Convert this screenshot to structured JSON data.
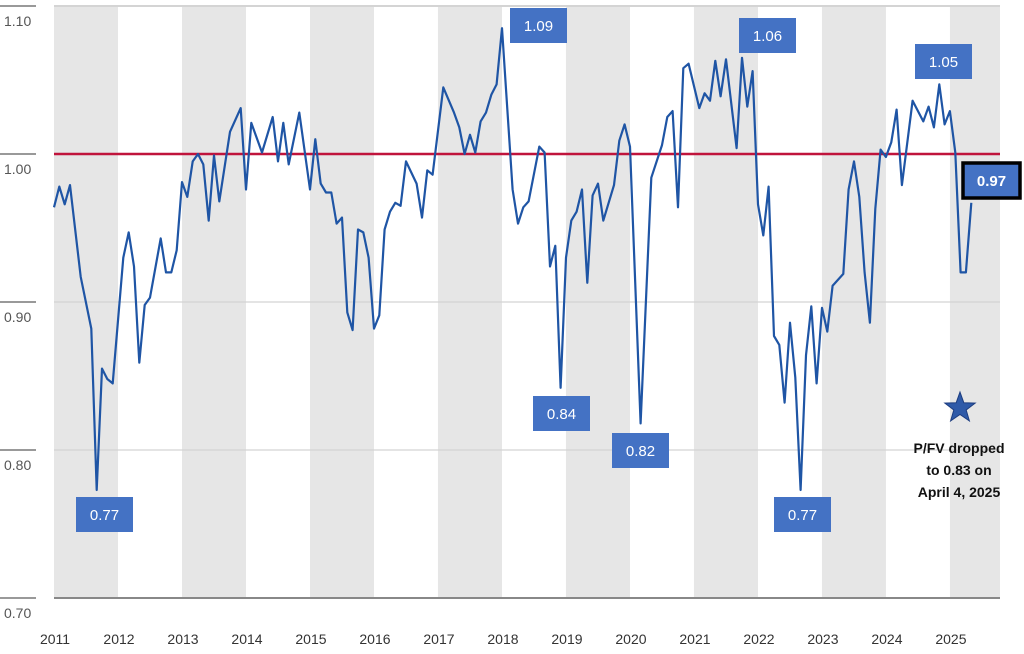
{
  "chart_data": {
    "type": "line",
    "title": "",
    "xlabel": "",
    "ylabel": "",
    "xlim": [
      "2011-01",
      "2025-10"
    ],
    "ylim": [
      0.7,
      1.1
    ],
    "yticks": [
      "0.70",
      "0.80",
      "0.90",
      "1.00",
      "1.10"
    ],
    "xticks": [
      "2011",
      "2012",
      "2013",
      "2014",
      "2015",
      "2016",
      "2017",
      "2018",
      "2019",
      "2020",
      "2021",
      "2022",
      "2023",
      "2024",
      "2025"
    ],
    "shaded_years": [
      "2011",
      "2013",
      "2015",
      "2017",
      "2019",
      "2021",
      "2023",
      "2025"
    ],
    "reference_line": {
      "value": 1.0,
      "color": "#c0143c"
    },
    "line_color": "#1f55a5",
    "label_color": "#4472c4",
    "grid": true,
    "series": [
      {
        "x": [
          "2011-01",
          "2011-02",
          "2011-03",
          "2011-04",
          "2011-06",
          "2011-08",
          "2011-09",
          "2011-10",
          "2011-11",
          "2011-12",
          "2012-02",
          "2012-03",
          "2012-04",
          "2012-05",
          "2012-06",
          "2012-07",
          "2012-09",
          "2012-10",
          "2012-11",
          "2012-12",
          "2013-01",
          "2013-02",
          "2013-03",
          "2013-04",
          "2013-05",
          "2013-06",
          "2013-07",
          "2013-08",
          "2013-10",
          "2013-12",
          "2014-01",
          "2014-02",
          "2014-04",
          "2014-06",
          "2014-07",
          "2014-08",
          "2014-09",
          "2014-11",
          "2015-01",
          "2015-02",
          "2015-03",
          "2015-04",
          "2015-05",
          "2015-06",
          "2015-07",
          "2015-08",
          "2015-09",
          "2015-10",
          "2015-11",
          "2015-12",
          "2016-01",
          "2016-02",
          "2016-03",
          "2016-04",
          "2016-05",
          "2016-06",
          "2016-07",
          "2016-09",
          "2016-10",
          "2016-11",
          "2016-12",
          "2017-02",
          "2017-04",
          "2017-05",
          "2017-06",
          "2017-07",
          "2017-08",
          "2017-09",
          "2017-10",
          "2017-11",
          "2017-12",
          "2018-01",
          "2018-03",
          "2018-04",
          "2018-05",
          "2018-06",
          "2018-08",
          "2018-09",
          "2018-10",
          "2018-11",
          "2018-12",
          "2019-01",
          "2019-02",
          "2019-03",
          "2019-04",
          "2019-05",
          "2019-06",
          "2019-07",
          "2019-08",
          "2019-10",
          "2019-11",
          "2019-12",
          "2020-01",
          "2020-03",
          "2020-05",
          "2020-07",
          "2020-08",
          "2020-09",
          "2020-10",
          "2020-11",
          "2020-12",
          "2021-02",
          "2021-03",
          "2021-04",
          "2021-05",
          "2021-06",
          "2021-07",
          "2021-09",
          "2021-10",
          "2021-11",
          "2021-12",
          "2022-01",
          "2022-02",
          "2022-03",
          "2022-04",
          "2022-05",
          "2022-06",
          "2022-07",
          "2022-08",
          "2022-09",
          "2022-10",
          "2022-11",
          "2022-12",
          "2023-01",
          "2023-02",
          "2023-03",
          "2023-05",
          "2023-06",
          "2023-07",
          "2023-08",
          "2023-09",
          "2023-10",
          "2023-11",
          "2023-12",
          "2024-01",
          "2024-02",
          "2024-03",
          "2024-04",
          "2024-06",
          "2024-08",
          "2024-09",
          "2024-10",
          "2024-11",
          "2024-12",
          "2025-01",
          "2025-02",
          "2025-03",
          "2025-04",
          "2025-05"
        ],
        "y": [
          0.964,
          0.978,
          0.966,
          0.979,
          0.917,
          0.882,
          0.773,
          0.855,
          0.848,
          0.845,
          0.93,
          0.947,
          0.924,
          0.859,
          0.898,
          0.903,
          0.943,
          0.92,
          0.92,
          0.935,
          0.981,
          0.971,
          0.995,
          1.0,
          0.993,
          0.955,
          0.999,
          0.968,
          1.015,
          1.031,
          0.976,
          1.021,
          1.001,
          1.025,
          0.995,
          1.021,
          0.993,
          1.028,
          0.976,
          1.01,
          0.98,
          0.974,
          0.974,
          0.953,
          0.957,
          0.893,
          0.881,
          0.949,
          0.947,
          0.93,
          0.882,
          0.891,
          0.949,
          0.961,
          0.967,
          0.965,
          0.995,
          0.98,
          0.957,
          0.989,
          0.986,
          1.045,
          1.028,
          1.018,
          1.0,
          1.013,
          1.001,
          1.022,
          1.028,
          1.04,
          1.047,
          1.085,
          0.976,
          0.953,
          0.964,
          0.968,
          1.005,
          1.001,
          0.924,
          0.938,
          0.842,
          0.93,
          0.955,
          0.961,
          0.976,
          0.913,
          0.972,
          0.98,
          0.955,
          0.979,
          1.009,
          1.02,
          1.005,
          0.818,
          0.984,
          1.006,
          1.025,
          1.029,
          0.964,
          1.058,
          1.061,
          1.031,
          1.041,
          1.036,
          1.063,
          1.039,
          1.064,
          1.004,
          1.065,
          1.032,
          1.056,
          0.966,
          0.945,
          0.978,
          0.877,
          0.871,
          0.832,
          0.886,
          0.849,
          0.773,
          0.864,
          0.897,
          0.845,
          0.896,
          0.88,
          0.911,
          0.919,
          0.976,
          0.995,
          0.971,
          0.92,
          0.886,
          0.963,
          1.003,
          0.998,
          1.008,
          1.03,
          0.979,
          1.036,
          1.022,
          1.032,
          1.018,
          1.047,
          1.02,
          1.029,
          1.001,
          0.92,
          0.92,
          0.967
        ]
      }
    ],
    "annotations": [
      {
        "text": "0.77",
        "date": "2011-09"
      },
      {
        "text": "1.09",
        "date": "2018-01"
      },
      {
        "text": "0.84",
        "date": "2018-12"
      },
      {
        "text": "0.82",
        "date": "2020-03"
      },
      {
        "text": "1.06",
        "date": "2021-10"
      },
      {
        "text": "0.77",
        "date": "2022-09"
      },
      {
        "text": "1.05",
        "date": "2024-11"
      },
      {
        "text": "0.97",
        "date": "2025-05",
        "emphasis": true
      }
    ],
    "note": {
      "icon": "star-icon",
      "lines": [
        "P/FV dropped",
        "to 0.83 on",
        "April 4, 2025"
      ]
    }
  }
}
